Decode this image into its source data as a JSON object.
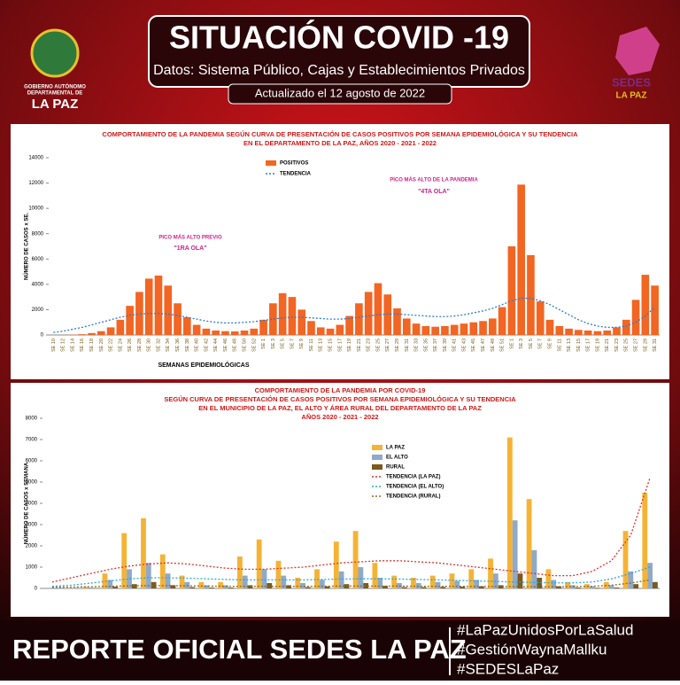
{
  "header": {
    "title": "SITUACIÓN COVID -19",
    "subtitle": "Datos: Sistema Público, Cajas y Establecimientos Privados",
    "updated": "Actualizado el  12  agosto de 2022",
    "left_logo": [
      "GOBIERNO AUTÓNOMO",
      "DEPARTAMENTAL DE",
      "LA PAZ"
    ],
    "right_logo": [
      "SEDES",
      "LA PAZ"
    ]
  },
  "chart_data": [
    {
      "type": "bar",
      "title": [
        "COMPORTAMIENTO DE LA PANDEMIA SEGÚN CURVA DE PRESENTACIÓN DE CASOS POSITIVOS POR SEMANA EPIDEMIOLÓGICA Y SU TENDENCIA",
        "EN EL DEPARTAMENTO DE LA PAZ, AÑOS 2020 - 2021 - 2022"
      ],
      "y_label": "NÚMERO DE CASOS x SE.",
      "x_label": "SEMANAS EPIDEMIOLÓGICAS",
      "categories": [
        "SE 10",
        "SE 12",
        "SE 14",
        "SE 16",
        "SE 18",
        "SE 20",
        "SE 22",
        "SE 24",
        "SE 26",
        "SE 28",
        "SE 30",
        "SE 32",
        "SE 34",
        "SE 36",
        "SE 38",
        "SE 40",
        "SE 42",
        "SE 44",
        "SE 46",
        "SE 48",
        "SE 50",
        "SE 52",
        "SE 1",
        "SE 3",
        "SE 5",
        "SE 7",
        "SE 9",
        "SE 11",
        "SE 13",
        "SE 15",
        "SE 17",
        "SE 19",
        "SE 21",
        "SE 23",
        "SE 25",
        "SE 27",
        "SE 29",
        "SE 31",
        "SE 33",
        "SE 35",
        "SE 37",
        "SE 39",
        "SE 41",
        "SE 43",
        "SE 45",
        "SE 47",
        "SE 49",
        "SE 51",
        "SE 1",
        "SE 3",
        "SE 5",
        "SE 7",
        "SE 9",
        "SE 11",
        "SE 13",
        "SE 15",
        "SE 17",
        "SE 19",
        "SE 21",
        "SE 23",
        "SE 25",
        "SE 27",
        "SE 29",
        "SE 31"
      ],
      "series": [
        {
          "name": "POSITIVOS",
          "color": "#f26522",
          "type": "bar",
          "values": [
            0,
            5,
            20,
            60,
            150,
            300,
            600,
            1200,
            2300,
            3400,
            4449,
            4690,
            3900,
            2500,
            1400,
            800,
            500,
            350,
            300,
            280,
            350,
            500,
            1200,
            2500,
            3300,
            3000,
            2000,
            1100,
            600,
            500,
            800,
            1500,
            2500,
            3400,
            4091,
            3200,
            2100,
            1300,
            900,
            700,
            650,
            700,
            800,
            900,
            1000,
            1100,
            1300,
            2200,
            7000,
            11877,
            6308,
            2652,
            1200,
            700,
            500,
            400,
            350,
            300,
            350,
            600,
            1200,
            2773,
            4755,
            3900
          ]
        },
        {
          "name": "TENDENCIA",
          "color": "#2b7bd0",
          "type": "line",
          "values": [
            200,
            300,
            450,
            600,
            800,
            1000,
            1200,
            1400,
            1550,
            1650,
            1700,
            1700,
            1650,
            1550,
            1400,
            1250,
            1100,
            1000,
            950,
            950,
            1000,
            1050,
            1150,
            1250,
            1350,
            1400,
            1400,
            1350,
            1300,
            1250,
            1250,
            1300,
            1400,
            1500,
            1600,
            1650,
            1650,
            1600,
            1550,
            1500,
            1450,
            1450,
            1500,
            1600,
            1750,
            1900,
            2100,
            2400,
            2700,
            2900,
            2900,
            2700,
            2400,
            2000,
            1600,
            1200,
            900,
            700,
            600,
            600,
            700,
            1000,
            1500,
            2200
          ]
        }
      ],
      "ylim": [
        0,
        14000
      ],
      "yticks": [
        0,
        2000,
        4000,
        6000,
        8000,
        10000,
        12000,
        14000
      ],
      "annotations": [
        "PICO MÁS ALTO PREVIO",
        "\"1RA OLA\"",
        "PICO MÁS ALTO DE LA PANDEMIA",
        "\"4TA OLA\""
      ]
    },
    {
      "type": "bar",
      "title": [
        "COMPORTAMIENTO DE LA PANDEMIA POR COVID-19",
        "SEGÚN CURVA DE PRESENTACIÓN DE CASOS POSITIVOS POR SEMANA EPIDEMIOLÓGICA Y SU TENDENCIA",
        "EN EL  MUNICIPIO DE LA PAZ, EL ALTO Y ÁREA RURAL DEL DEPARTAMENTO DE LA PAZ",
        "AÑOS 2020 - 2021 - 2022"
      ],
      "y_label": "NÚMERO DE CASOS x SEMANA",
      "categories": [
        null,
        null,
        null,
        null,
        null,
        null,
        null,
        null,
        null,
        null,
        null,
        null,
        null,
        null,
        null,
        null,
        null,
        null,
        null,
        null,
        null,
        null,
        null,
        null,
        null,
        null,
        null,
        null,
        null,
        null,
        null,
        null
      ],
      "series": [
        {
          "name": "LA PAZ",
          "color": "#f5b335",
          "type": "bar",
          "values": [
            0,
            10,
            80,
            700,
            2600,
            3300,
            1600,
            600,
            300,
            300,
            1500,
            2300,
            1300,
            500,
            900,
            2200,
            2700,
            1200,
            600,
            500,
            600,
            700,
            900,
            1400,
            7100,
            4200,
            900,
            300,
            200,
            300,
            2700,
            4500
          ]
        },
        {
          "name": "EL ALTO",
          "color": "#8fa9c9",
          "type": "bar",
          "values": [
            0,
            5,
            40,
            400,
            900,
            1200,
            700,
            300,
            150,
            150,
            600,
            900,
            600,
            250,
            400,
            800,
            1000,
            500,
            250,
            250,
            300,
            350,
            400,
            700,
            3200,
            1800,
            400,
            150,
            100,
            150,
            800,
            1200
          ]
        },
        {
          "name": "RURAL",
          "color": "#7a5a1e",
          "type": "bar",
          "values": [
            0,
            2,
            10,
            80,
            200,
            300,
            150,
            60,
            40,
            40,
            150,
            250,
            150,
            60,
            100,
            200,
            250,
            120,
            60,
            60,
            70,
            80,
            100,
            150,
            700,
            500,
            100,
            40,
            30,
            40,
            200,
            300
          ]
        },
        {
          "name": "TENDENCIA (LA PAZ)",
          "color": "#e0302a",
          "type": "line",
          "values": [
            300,
            500,
            700,
            900,
            1050,
            1150,
            1200,
            1150,
            1050,
            950,
            900,
            900,
            950,
            1000,
            1100,
            1200,
            1250,
            1300,
            1300,
            1250,
            1200,
            1100,
            1000,
            900,
            800,
            700,
            600,
            600,
            800,
            1300,
            2500,
            5200
          ]
        },
        {
          "name": "TENDENCIA (EL ALTO)",
          "color": "#29a8d8",
          "type": "line",
          "values": [
            100,
            150,
            250,
            350,
            450,
            500,
            500,
            480,
            450,
            420,
            400,
            400,
            400,
            400,
            420,
            440,
            450,
            450,
            440,
            420,
            400,
            380,
            350,
            330,
            300,
            280,
            260,
            260,
            300,
            450,
            700,
            1000
          ]
        },
        {
          "name": "TENDENCIA (RURAL)",
          "color": "#8a6a20",
          "type": "line",
          "values": [
            50,
            60,
            80,
            100,
            120,
            130,
            130,
            120,
            110,
            100,
            100,
            100,
            100,
            100,
            100,
            110,
            110,
            110,
            110,
            100,
            100,
            100,
            90,
            90,
            90,
            80,
            80,
            90,
            100,
            150,
            250,
            400
          ]
        }
      ],
      "ylim": [
        0,
        8000
      ],
      "yticks": [
        0,
        1000,
        2000,
        3000,
        4000,
        5000,
        6000,
        7000,
        8000
      ]
    }
  ],
  "footer": {
    "title": "REPORTE OFICIAL SEDES LA PAZ",
    "hashtags": [
      "#LaPazUnidosPorLaSalud",
      "#GestiónWaynaMallku",
      "#SEDESLaPaz"
    ]
  }
}
